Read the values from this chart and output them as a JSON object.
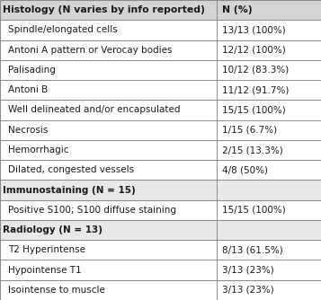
{
  "rows": [
    {
      "label": "Histology (N varies by info reported)",
      "value": "N (%)",
      "type": "header",
      "indent": false
    },
    {
      "label": "Spindle/elongated cells",
      "value": "13/13 (100%)",
      "type": "data",
      "indent": true
    },
    {
      "label": "Antoni A pattern or Verocay bodies",
      "value": "12/12 (100%)",
      "type": "data",
      "indent": true
    },
    {
      "label": "Palisading",
      "value": "10/12 (83.3%)",
      "type": "data",
      "indent": true
    },
    {
      "label": "Antoni B",
      "value": "11/12 (91.7%)",
      "type": "data",
      "indent": true
    },
    {
      "label": "Well delineated and/or encapsulated",
      "value": "15/15 (100%)",
      "type": "data",
      "indent": true
    },
    {
      "label": "Necrosis",
      "value": "1/15 (6.7%)",
      "type": "data",
      "indent": true
    },
    {
      "label": "Hemorrhagic",
      "value": "2/15 (13.3%)",
      "type": "data",
      "indent": true
    },
    {
      "label": "Dilated, congested vessels",
      "value": "4/8 (50%)",
      "type": "data",
      "indent": true
    },
    {
      "label": "Immunostaining (N = 15)",
      "value": "",
      "type": "section",
      "indent": false
    },
    {
      "label": "Positive S100; S100 diffuse staining",
      "value": "15/15 (100%)",
      "type": "data",
      "indent": true
    },
    {
      "label": "Radiology (N = 13)",
      "value": "",
      "type": "section",
      "indent": false
    },
    {
      "label": "T2 Hyperintense",
      "value": "8/13 (61.5%)",
      "type": "data",
      "indent": true
    },
    {
      "label": "Hypointense T1",
      "value": "3/13 (23%)",
      "type": "data",
      "indent": true
    },
    {
      "label": "Isointense to muscle",
      "value": "3/13 (23%)",
      "type": "data",
      "indent": true
    }
  ],
  "header_bg": "#d4d4d4",
  "section_bg": "#e8e8e8",
  "data_bg": "#ffffff",
  "border_color": "#888888",
  "text_color": "#1a1a1a",
  "font_size": 7.5,
  "header_font_size": 7.8,
  "col_split": 0.675,
  "figsize": [
    3.57,
    3.34
  ],
  "dpi": 100
}
